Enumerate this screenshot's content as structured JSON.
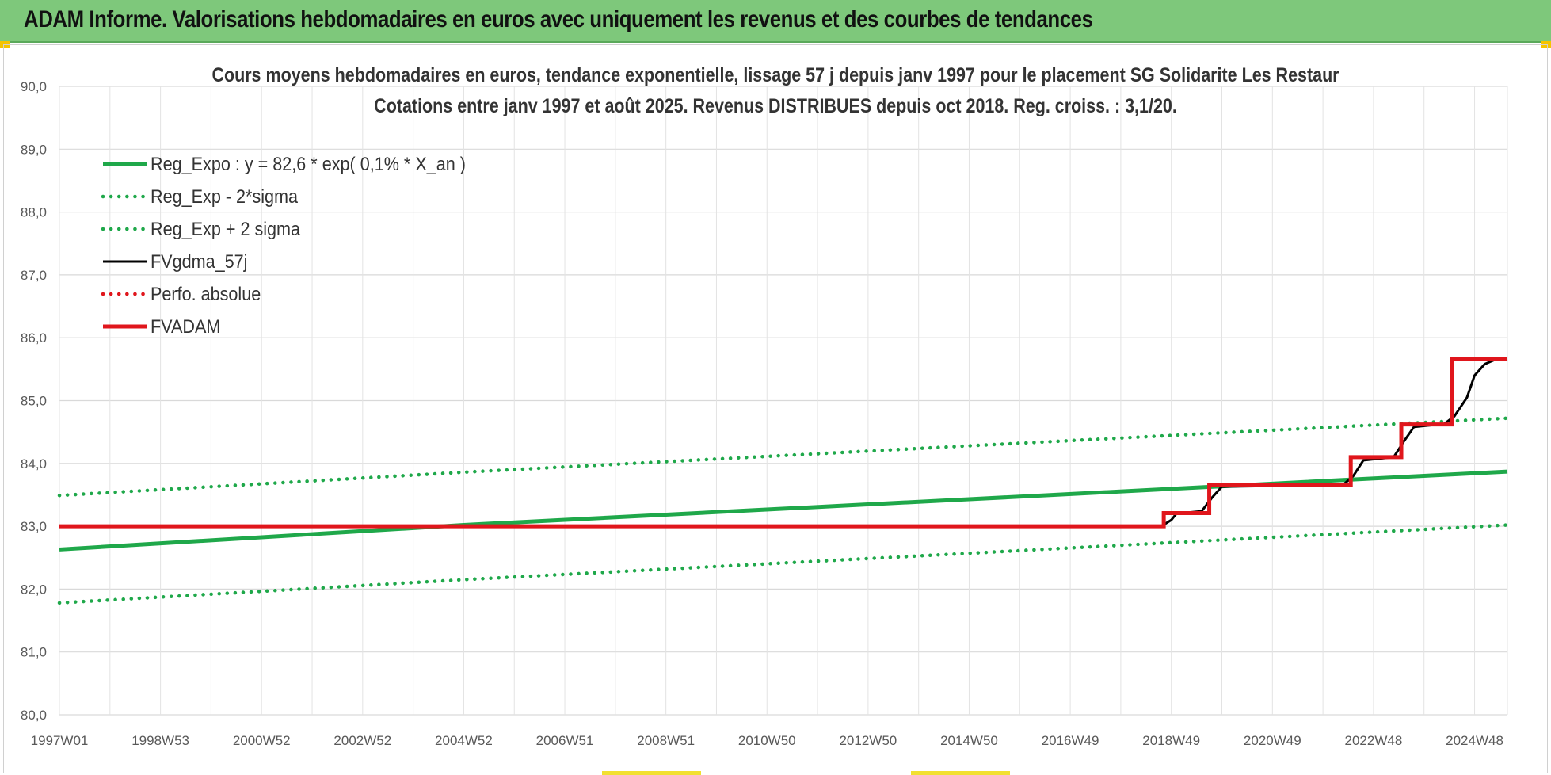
{
  "banner": {
    "title": "ADAM Informe. Valorisations hebdomadaires en euros avec uniquement les revenus et des courbes de tendances"
  },
  "chart_data": {
    "type": "line",
    "title": "Cours moyens hebdomadaires en euros, tendance exponentielle, lissage 57 j depuis janv 1997 pour le placement SG Solidarite Les Restaur",
    "subtitle": "Cotations entre janv 1997 et août 2025. Revenus DISTRIBUES depuis oct 2018. Reg. croiss. : 3,1/20.",
    "xlabel": "",
    "ylabel": "",
    "ylim": [
      80.0,
      90.0
    ],
    "yticks": [
      "80,0",
      "81,0",
      "82,0",
      "83,0",
      "84,0",
      "85,0",
      "86,0",
      "87,0",
      "88,0",
      "89,0",
      "90,0"
    ],
    "xlim": [
      1997.0,
      2025.65
    ],
    "xticks": [
      {
        "label": "1997W01",
        "x": 1997.0
      },
      {
        "label": "1998W53",
        "x": 1999.0
      },
      {
        "label": "2000W52",
        "x": 2001.0
      },
      {
        "label": "2002W52",
        "x": 2003.0
      },
      {
        "label": "2004W52",
        "x": 2005.0
      },
      {
        "label": "2006W51",
        "x": 2007.0
      },
      {
        "label": "2008W51",
        "x": 2009.0
      },
      {
        "label": "2010W50",
        "x": 2011.0
      },
      {
        "label": "2012W50",
        "x": 2013.0
      },
      {
        "label": "2014W50",
        "x": 2015.0
      },
      {
        "label": "2016W49",
        "x": 2017.0
      },
      {
        "label": "2018W49",
        "x": 2019.0
      },
      {
        "label": "2020W49",
        "x": 2021.0
      },
      {
        "label": "2022W48",
        "x": 2023.0
      },
      {
        "label": "2024W48",
        "x": 2025.0
      }
    ],
    "grid": true,
    "legend_position": "top-left",
    "series": [
      {
        "name": "Reg_Expo : y = 82,6 * exp( 0,1% *  X_an )",
        "style": "solid",
        "color": "#1fa84a",
        "x": [
          1997.0,
          2005.0,
          2015.0,
          2025.65
        ],
        "y": [
          82.63,
          83.02,
          83.43,
          83.87
        ]
      },
      {
        "name": "Reg_Exp - 2*sigma",
        "style": "dotted",
        "color": "#1fa84a",
        "x": [
          1997.0,
          2005.0,
          2015.0,
          2025.65
        ],
        "y": [
          81.78,
          82.15,
          82.57,
          83.02
        ]
      },
      {
        "name": "Reg_Exp + 2 sigma",
        "style": "dotted",
        "color": "#1fa84a",
        "x": [
          1997.0,
          2005.0,
          2015.0,
          2025.65
        ],
        "y": [
          83.49,
          83.86,
          84.28,
          84.72
        ]
      },
      {
        "name": "FVgdma_57j",
        "style": "solid",
        "color": "#000000",
        "x": [
          1997.0,
          2018.8,
          2019.0,
          2019.1,
          2019.6,
          2019.8,
          2020.0,
          2022.4,
          2022.6,
          2022.8,
          2023.4,
          2023.6,
          2023.8,
          2024.4,
          2024.6,
          2024.85,
          2025.0,
          2025.2,
          2025.4,
          2025.65
        ],
        "y": [
          83.0,
          83.0,
          83.1,
          83.2,
          83.24,
          83.45,
          83.63,
          83.66,
          83.8,
          84.05,
          84.1,
          84.35,
          84.58,
          84.63,
          84.75,
          85.05,
          85.4,
          85.58,
          85.65,
          85.66
        ]
      },
      {
        "name": "Perfo. absolue",
        "style": "dotted",
        "color": "#e0161c",
        "x": [],
        "y": []
      },
      {
        "name": "FVADAM",
        "style": "step",
        "color": "#e0161c",
        "x": [
          1997.0,
          2018.85,
          2019.75,
          2022.55,
          2023.55,
          2024.55,
          2025.65
        ],
        "y": [
          83.0,
          83.21,
          83.66,
          84.1,
          84.62,
          85.66,
          85.66
        ]
      }
    ]
  }
}
